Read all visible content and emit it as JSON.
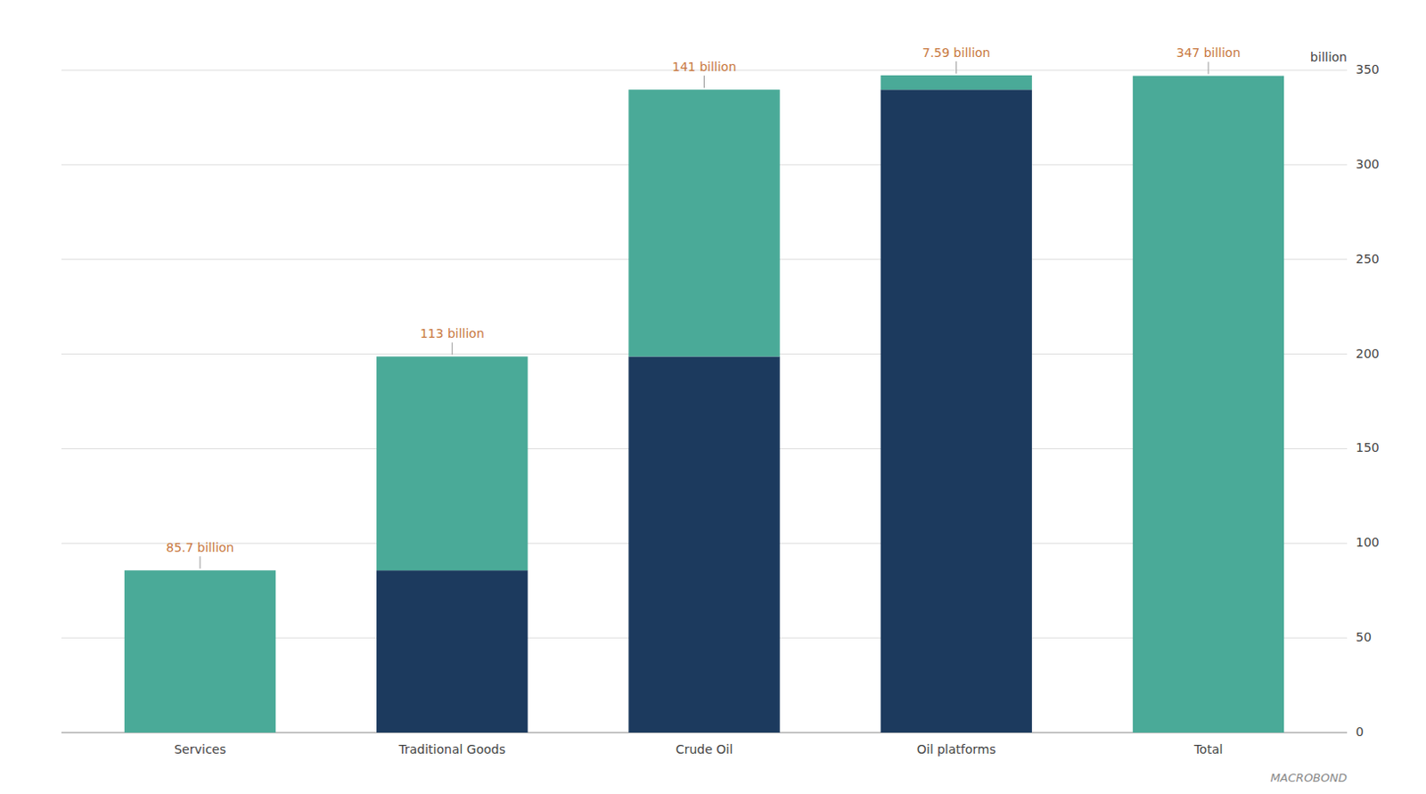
{
  "chart_data": {
    "type": "waterfall",
    "categories": [
      "Services",
      "Traditional Goods",
      "Crude Oil",
      "Oil platforms",
      "Total"
    ],
    "values": [
      85.7,
      113.0,
      141.0,
      7.59,
      347.0
    ],
    "value_labels": [
      "85.7 billion",
      "113 billion",
      "141 billion",
      "7.59 billion",
      "347 billion"
    ],
    "data_labels": true,
    "color": "#4aaa98",
    "ylabel": "billion",
    "annotations": [
      "MACROBOND"
    ],
    "ylim": [
      0,
      350
    ],
    "yticks": [
      0,
      50,
      100,
      150,
      200,
      250,
      300,
      350
    ],
    "grid": true
  }
}
